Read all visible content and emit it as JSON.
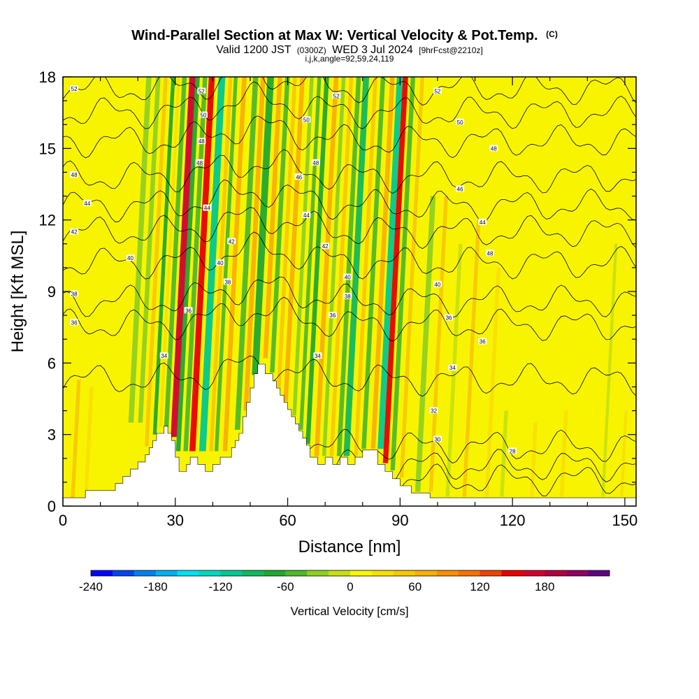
{
  "title": "Wind-Parallel Section at Max W: Vertical Velocity & Pot.Temp.",
  "title_mark": "(C)",
  "subtitle": {
    "valid": "Valid 1200 JST",
    "utc": "(0300Z)",
    "date": "WED 3 Jul 2024",
    "fcst": "[9hrFcst@2210z]"
  },
  "indices": "i,j,k,angle=92,59,24,119",
  "chart_data": {
    "type": "heatmap",
    "xlabel": "Distance [nm]",
    "ylabel": "Height [Kft MSL]",
    "xlim": [
      0,
      153
    ],
    "ylim": [
      0,
      18
    ],
    "xticks": [
      0,
      30,
      60,
      90,
      120,
      150
    ],
    "yticks": [
      0,
      3,
      6,
      9,
      12,
      15,
      18
    ],
    "colorbar": {
      "label": "Vertical Velocity [cm/s]",
      "min": -240,
      "max": 220,
      "step": 20,
      "tick_values": [
        -240,
        -180,
        -120,
        -60,
        0,
        60,
        120,
        180
      ],
      "colors": [
        "#0000ff",
        "#0044f0",
        "#0080f0",
        "#00b0f0",
        "#00e0f0",
        "#00d8c0",
        "#00c890",
        "#10b860",
        "#20a830",
        "#50b828",
        "#90d020",
        "#c8e010",
        "#f8f800",
        "#f8e000",
        "#f8c800",
        "#f8b000",
        "#f89000",
        "#f87000",
        "#f04000",
        "#e80000",
        "#d00030",
        "#b00040",
        "#900060",
        "#600080"
      ]
    },
    "topography": [
      [
        0,
        0.35
      ],
      [
        6,
        0.35
      ],
      [
        6,
        0.65
      ],
      [
        14,
        0.65
      ],
      [
        14,
        0.95
      ],
      [
        16,
        0.95
      ],
      [
        16,
        1.25
      ],
      [
        18,
        1.25
      ],
      [
        18,
        1.55
      ],
      [
        20,
        1.55
      ],
      [
        20,
        1.85
      ],
      [
        22,
        1.85
      ],
      [
        22,
        2.15
      ],
      [
        23,
        2.15
      ],
      [
        23,
        2.45
      ],
      [
        24,
        2.45
      ],
      [
        24,
        2.75
      ],
      [
        25,
        2.75
      ],
      [
        25,
        3.05
      ],
      [
        27,
        3.05
      ],
      [
        27,
        3.35
      ],
      [
        28,
        3.35
      ],
      [
        28,
        3.05
      ],
      [
        29,
        3.05
      ],
      [
        29,
        2.75
      ],
      [
        30,
        2.75
      ],
      [
        30,
        2.05
      ],
      [
        31,
        2.05
      ],
      [
        31,
        1.45
      ],
      [
        33,
        1.45
      ],
      [
        33,
        1.75
      ],
      [
        34,
        1.75
      ],
      [
        34,
        2.05
      ],
      [
        36,
        2.05
      ],
      [
        36,
        1.75
      ],
      [
        38,
        1.75
      ],
      [
        38,
        1.45
      ],
      [
        40,
        1.45
      ],
      [
        40,
        1.75
      ],
      [
        42,
        1.75
      ],
      [
        42,
        2.05
      ],
      [
        45,
        2.05
      ],
      [
        45,
        2.45
      ],
      [
        46,
        2.45
      ],
      [
        46,
        2.75
      ],
      [
        47,
        2.75
      ],
      [
        47,
        3.05
      ],
      [
        48,
        3.05
      ],
      [
        48,
        3.75
      ],
      [
        49,
        3.75
      ],
      [
        49,
        4.35
      ],
      [
        50,
        4.35
      ],
      [
        50,
        4.95
      ],
      [
        51,
        4.95
      ],
      [
        51,
        5.55
      ],
      [
        52,
        5.55
      ],
      [
        52,
        5.95
      ],
      [
        54,
        5.95
      ],
      [
        54,
        5.55
      ],
      [
        56,
        5.55
      ],
      [
        56,
        5.25
      ],
      [
        57,
        5.25
      ],
      [
        57,
        4.95
      ],
      [
        58,
        4.95
      ],
      [
        58,
        4.65
      ],
      [
        59,
        4.65
      ],
      [
        59,
        4.35
      ],
      [
        60,
        4.35
      ],
      [
        60,
        4.05
      ],
      [
        61,
        4.05
      ],
      [
        61,
        3.75
      ],
      [
        62,
        3.75
      ],
      [
        62,
        3.45
      ],
      [
        63,
        3.45
      ],
      [
        63,
        3.15
      ],
      [
        64,
        3.15
      ],
      [
        64,
        2.85
      ],
      [
        65,
        2.85
      ],
      [
        65,
        2.55
      ],
      [
        66,
        2.55
      ],
      [
        66,
        2.05
      ],
      [
        68,
        2.05
      ],
      [
        68,
        1.75
      ],
      [
        70,
        1.75
      ],
      [
        70,
        2.05
      ],
      [
        72,
        2.05
      ],
      [
        72,
        1.75
      ],
      [
        74,
        1.75
      ],
      [
        74,
        2.05
      ],
      [
        76,
        2.05
      ],
      [
        76,
        1.75
      ],
      [
        78,
        1.75
      ],
      [
        78,
        2.05
      ],
      [
        80,
        2.05
      ],
      [
        80,
        2.35
      ],
      [
        84,
        2.35
      ],
      [
        84,
        1.75
      ],
      [
        86,
        1.75
      ],
      [
        86,
        1.45
      ],
      [
        88,
        1.45
      ],
      [
        88,
        1.15
      ],
      [
        90,
        1.15
      ],
      [
        90,
        0.85
      ],
      [
        93,
        0.85
      ],
      [
        93,
        0.55
      ],
      [
        98,
        0.55
      ],
      [
        98,
        0.35
      ],
      [
        153,
        0.35
      ]
    ],
    "bands": [
      {
        "x": 3.5,
        "w": 0.5,
        "y0": 0.2,
        "y1": 5.3,
        "v": 40
      },
      {
        "x": 7,
        "w": 0.5,
        "y0": 0.2,
        "y1": 5.0,
        "v": 30
      },
      {
        "x": 18,
        "w": 0.7,
        "y0": 3.5,
        "y1": 18,
        "v": -30
      },
      {
        "x": 20.5,
        "w": 0.6,
        "y0": 3.5,
        "y1": 18,
        "v": -40
      },
      {
        "x": 22.5,
        "w": 0.5,
        "y0": 2.5,
        "y1": 18,
        "v": 50
      },
      {
        "x": 24.5,
        "w": 0.5,
        "y0": 3.0,
        "y1": 18,
        "v": -70
      },
      {
        "x": 26,
        "w": 0.4,
        "y0": 3.3,
        "y1": 18,
        "v": 30
      },
      {
        "x": 27.5,
        "w": 0.6,
        "y0": 3.3,
        "y1": 18,
        "v": -50
      },
      {
        "x": 29.7,
        "w": 0.9,
        "y0": 2.9,
        "y1": 18,
        "v": 170
      },
      {
        "x": 31,
        "w": 0.6,
        "y0": 2.3,
        "y1": 18,
        "v": -70
      },
      {
        "x": 33,
        "w": 0.6,
        "y0": 2.3,
        "y1": 18,
        "v": -60
      },
      {
        "x": 34.8,
        "w": 0.8,
        "y0": 2.3,
        "y1": 18,
        "v": 140
      },
      {
        "x": 37.5,
        "w": 0.9,
        "y0": 2.3,
        "y1": 18,
        "v": -120
      },
      {
        "x": 39.8,
        "w": 0.5,
        "y0": 2.3,
        "y1": 18,
        "v": 50
      },
      {
        "x": 41.2,
        "w": 0.5,
        "y0": 2.3,
        "y1": 18,
        "v": -50
      },
      {
        "x": 43.5,
        "w": 0.6,
        "y0": 2.3,
        "y1": 18,
        "v": 70
      },
      {
        "x": 46.5,
        "w": 0.7,
        "y0": 3.2,
        "y1": 18,
        "v": -50
      },
      {
        "x": 48.5,
        "w": 0.6,
        "y0": 4.0,
        "y1": 18,
        "v": 60
      },
      {
        "x": 50.5,
        "w": 0.9,
        "y0": 5.5,
        "y1": 18,
        "v": -80
      },
      {
        "x": 53,
        "w": 0.6,
        "y0": 6.2,
        "y1": 18,
        "v": 60
      },
      {
        "x": 55,
        "w": 0.6,
        "y0": 5.6,
        "y1": 18,
        "v": -60
      },
      {
        "x": 57,
        "w": 0.5,
        "y0": 5.0,
        "y1": 18,
        "v": 50
      },
      {
        "x": 59,
        "w": 0.6,
        "y0": 4.4,
        "y1": 18,
        "v": 60
      },
      {
        "x": 61.5,
        "w": 0.5,
        "y0": 3.8,
        "y1": 18,
        "v": -40
      },
      {
        "x": 63.5,
        "w": 0.5,
        "y0": 3.2,
        "y1": 18,
        "v": -60
      },
      {
        "x": 65.5,
        "w": 0.6,
        "y0": 2.6,
        "y1": 18,
        "v": -80
      },
      {
        "x": 68,
        "w": 0.6,
        "y0": 2.1,
        "y1": 18,
        "v": 60
      },
      {
        "x": 70,
        "w": 0.5,
        "y0": 2.1,
        "y1": 18,
        "v": -40
      },
      {
        "x": 72,
        "w": 0.5,
        "y0": 2.1,
        "y1": 18,
        "v": 50
      },
      {
        "x": 74,
        "w": 0.6,
        "y0": 2.1,
        "y1": 18,
        "v": -50
      },
      {
        "x": 76,
        "w": 0.8,
        "y0": 2.1,
        "y1": 18,
        "v": -100
      },
      {
        "x": 78.5,
        "w": 0.5,
        "y0": 2.1,
        "y1": 18,
        "v": 50
      },
      {
        "x": 80.5,
        "w": 0.6,
        "y0": 2.4,
        "y1": 18,
        "v": -60
      },
      {
        "x": 83,
        "w": 0.6,
        "y0": 2.4,
        "y1": 18,
        "v": 70
      },
      {
        "x": 85,
        "w": 0.8,
        "y0": 2.4,
        "y1": 18,
        "v": -110
      },
      {
        "x": 86.5,
        "w": 0.7,
        "y0": 1.8,
        "y1": 18,
        "v": 150
      },
      {
        "x": 88.5,
        "w": 0.6,
        "y0": 1.5,
        "y1": 18,
        "v": -60
      },
      {
        "x": 91,
        "w": 0.5,
        "y0": 1.2,
        "y1": 18,
        "v": 40
      },
      {
        "x": 95.5,
        "w": 0.7,
        "y0": 0.6,
        "y1": 13,
        "v": -40
      },
      {
        "x": 99,
        "w": 0.5,
        "y0": 0.6,
        "y1": 13,
        "v": 40
      },
      {
        "x": 103.5,
        "w": 0.5,
        "y0": 0.4,
        "y1": 11,
        "v": -20
      },
      {
        "x": 108,
        "w": 0.5,
        "y0": 0.4,
        "y1": 12,
        "v": 40
      },
      {
        "x": 114,
        "w": 0.5,
        "y0": 0.4,
        "y1": 10,
        "v": 30
      },
      {
        "x": 118,
        "w": 0.5,
        "y0": 0.4,
        "y1": 4,
        "v": -20
      },
      {
        "x": 126,
        "w": 0.5,
        "y0": 0.4,
        "y1": 3.5,
        "v": 30
      },
      {
        "x": 134,
        "w": 0.5,
        "y0": 0.4,
        "y1": 4,
        "v": 30
      },
      {
        "x": 145,
        "w": 0.4,
        "y0": 0.4,
        "y1": 11,
        "v": -20
      },
      {
        "x": 150,
        "w": 0.4,
        "y0": 0.4,
        "y1": 4,
        "v": 30
      }
    ],
    "isentropes": [
      {
        "label": "28",
        "base": 1.1,
        "x0": 84
      },
      {
        "label": "30",
        "base": 1.7,
        "x0": 70
      },
      {
        "label": "32",
        "base": 2.5,
        "x0": 60
      },
      {
        "label": "34",
        "base": 5.3,
        "x0": 0
      },
      {
        "label": "36",
        "base": 7.6,
        "x0": 0
      },
      {
        "label": "38",
        "base": 8.6,
        "x0": 0
      },
      {
        "label": "40",
        "base": 10.2,
        "x0": 0
      },
      {
        "label": "42",
        "base": 11.5,
        "x0": 0
      },
      {
        "label": "44",
        "base": 12.6,
        "x0": 0
      },
      {
        "label": "46",
        "base": 13.8,
        "x0": 0
      },
      {
        "label": "48",
        "base": 15.3,
        "x0": 0
      },
      {
        "label": "50",
        "base": 16.5,
        "x0": 0
      },
      {
        "label": "52",
        "base": 17.5,
        "x0": 0
      }
    ],
    "contour_labels": [
      {
        "text": "52",
        "x": 3,
        "y": 17.5
      },
      {
        "text": "52",
        "x": 73,
        "y": 17.2
      },
      {
        "text": "52",
        "x": 100,
        "y": 17.4
      },
      {
        "text": "52",
        "x": 37,
        "y": 17.4
      },
      {
        "text": "50",
        "x": 37.5,
        "y": 16.4
      },
      {
        "text": "50",
        "x": 65,
        "y": 16.2
      },
      {
        "text": "50",
        "x": 106,
        "y": 16.1
      },
      {
        "text": "48",
        "x": 3,
        "y": 13.9
      },
      {
        "text": "48",
        "x": 37,
        "y": 15.3
      },
      {
        "text": "48",
        "x": 36.5,
        "y": 14.4
      },
      {
        "text": "48",
        "x": 67.5,
        "y": 14.4
      },
      {
        "text": "48",
        "x": 115,
        "y": 15.0
      },
      {
        "text": "46",
        "x": 63,
        "y": 13.8
      },
      {
        "text": "46",
        "x": 106,
        "y": 13.3
      },
      {
        "text": "44",
        "x": 6.5,
        "y": 12.7
      },
      {
        "text": "44",
        "x": 38.5,
        "y": 12.5
      },
      {
        "text": "44",
        "x": 65,
        "y": 12.2
      },
      {
        "text": "44",
        "x": 112,
        "y": 11.9
      },
      {
        "text": "42",
        "x": 3,
        "y": 11.5
      },
      {
        "text": "42",
        "x": 45,
        "y": 11.1
      },
      {
        "text": "42",
        "x": 70,
        "y": 10.9
      },
      {
        "text": "40",
        "x": 18,
        "y": 10.4
      },
      {
        "text": "40",
        "x": 42,
        "y": 10.2
      },
      {
        "text": "40",
        "x": 76,
        "y": 9.6
      },
      {
        "text": "40",
        "x": 100,
        "y": 9.3
      },
      {
        "text": "48",
        "x": 114,
        "y": 10.6
      },
      {
        "text": "38",
        "x": 3,
        "y": 8.9
      },
      {
        "text": "38",
        "x": 44,
        "y": 9.4
      },
      {
        "text": "38",
        "x": 76,
        "y": 8.8
      },
      {
        "text": "36",
        "x": 3,
        "y": 7.7
      },
      {
        "text": "36",
        "x": 33.5,
        "y": 8.2
      },
      {
        "text": "36",
        "x": 72,
        "y": 8.0
      },
      {
        "text": "36",
        "x": 103,
        "y": 7.9
      },
      {
        "text": "36",
        "x": 112,
        "y": 6.9
      },
      {
        "text": "34",
        "x": 27,
        "y": 6.3
      },
      {
        "text": "34",
        "x": 68,
        "y": 6.3
      },
      {
        "text": "34",
        "x": 104,
        "y": 5.8
      },
      {
        "text": "32",
        "x": 99,
        "y": 4.0
      },
      {
        "text": "30",
        "x": 100,
        "y": 2.8
      },
      {
        "text": "28",
        "x": 120,
        "y": 2.3
      }
    ]
  }
}
